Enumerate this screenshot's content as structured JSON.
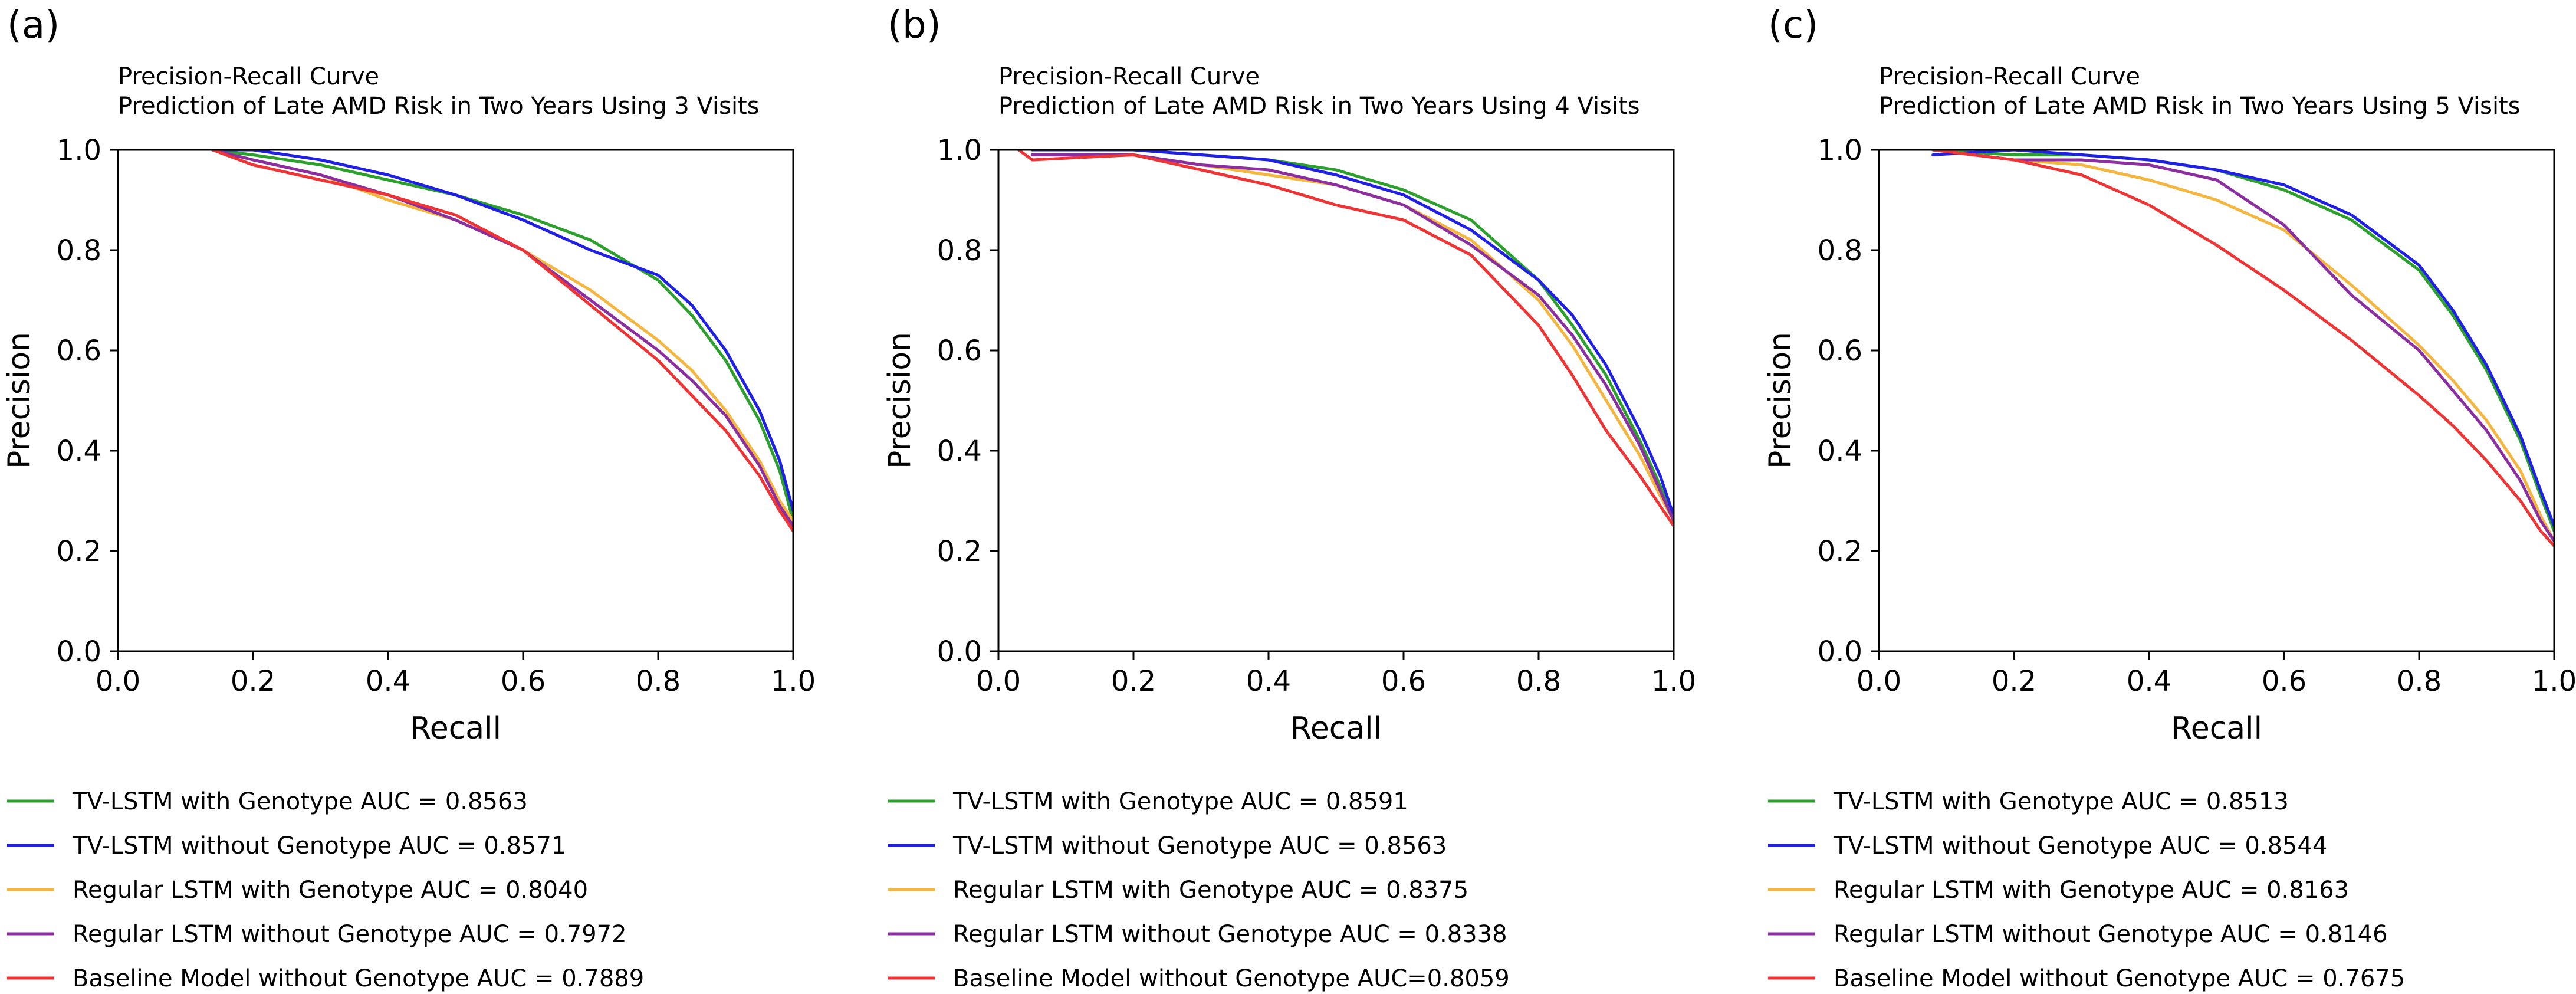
{
  "chart_data": [
    {
      "type": "line",
      "panel": "(a)",
      "title": "Precision-Recall Curve",
      "subtitle": "Prediction of Late AMD Risk in Two Years Using 3 Visits",
      "xlabel": "Recall",
      "ylabel": "Precision",
      "xlim": [
        0.0,
        1.0
      ],
      "ylim": [
        0.0,
        1.0
      ],
      "xticks": [
        "0.0",
        "0.2",
        "0.4",
        "0.6",
        "0.8",
        "1.0"
      ],
      "yticks": [
        "0.0",
        "0.2",
        "0.4",
        "0.6",
        "0.8",
        "1.0"
      ],
      "grid": false,
      "legend_position": "below",
      "series": [
        {
          "name": "TV-LSTM with Genotype AUC = 0.8563",
          "color": "#2ca02c",
          "x": [
            0.14,
            0.2,
            0.3,
            0.4,
            0.5,
            0.6,
            0.7,
            0.8,
            0.85,
            0.9,
            0.95,
            0.98,
            1.0
          ],
          "y": [
            1.0,
            0.99,
            0.97,
            0.94,
            0.91,
            0.87,
            0.82,
            0.74,
            0.67,
            0.58,
            0.46,
            0.36,
            0.26
          ]
        },
        {
          "name": "TV-LSTM without Genotype AUC = 0.8571",
          "color": "#1f1fe6",
          "x": [
            0.14,
            0.2,
            0.3,
            0.4,
            0.5,
            0.6,
            0.7,
            0.8,
            0.85,
            0.9,
            0.95,
            0.98,
            1.0
          ],
          "y": [
            1.0,
            1.0,
            0.98,
            0.95,
            0.91,
            0.86,
            0.8,
            0.75,
            0.69,
            0.6,
            0.48,
            0.38,
            0.28
          ]
        },
        {
          "name": "Regular LSTM with Genotype AUC = 0.8040",
          "color": "#f4b63f",
          "x": [
            0.14,
            0.2,
            0.3,
            0.4,
            0.5,
            0.6,
            0.7,
            0.8,
            0.85,
            0.9,
            0.95,
            0.98,
            1.0
          ],
          "y": [
            1.0,
            0.98,
            0.95,
            0.9,
            0.86,
            0.8,
            0.72,
            0.62,
            0.56,
            0.48,
            0.38,
            0.3,
            0.26
          ]
        },
        {
          "name": "Regular LSTM without Genotype AUC = 0.7972",
          "color": "#8b2fa0",
          "x": [
            0.14,
            0.2,
            0.3,
            0.4,
            0.5,
            0.6,
            0.7,
            0.8,
            0.85,
            0.9,
            0.95,
            0.98,
            1.0
          ],
          "y": [
            1.0,
            0.98,
            0.95,
            0.91,
            0.86,
            0.8,
            0.7,
            0.6,
            0.54,
            0.47,
            0.37,
            0.29,
            0.25
          ]
        },
        {
          "name": "Baseline Model without Genotype AUC = 0.7889",
          "color": "#ee3434",
          "x": [
            0.14,
            0.2,
            0.3,
            0.4,
            0.5,
            0.6,
            0.7,
            0.8,
            0.85,
            0.9,
            0.95,
            0.98,
            1.0
          ],
          "y": [
            1.0,
            0.97,
            0.94,
            0.91,
            0.87,
            0.8,
            0.69,
            0.58,
            0.51,
            0.44,
            0.35,
            0.28,
            0.24
          ]
        }
      ]
    },
    {
      "type": "line",
      "panel": "(b)",
      "title": "Precision-Recall Curve",
      "subtitle": "Prediction of Late AMD Risk in Two Years Using 4 Visits",
      "xlabel": "Recall",
      "ylabel": "Precision",
      "xlim": [
        0.0,
        1.0
      ],
      "ylim": [
        0.0,
        1.0
      ],
      "xticks": [
        "0.0",
        "0.2",
        "0.4",
        "0.6",
        "0.8",
        "1.0"
      ],
      "yticks": [
        "0.0",
        "0.2",
        "0.4",
        "0.6",
        "0.8",
        "1.0"
      ],
      "grid": false,
      "legend_position": "below",
      "series": [
        {
          "name": "TV-LSTM with Genotype AUC = 0.8591",
          "color": "#2ca02c",
          "x": [
            0.05,
            0.2,
            0.3,
            0.4,
            0.5,
            0.6,
            0.7,
            0.8,
            0.85,
            0.9,
            0.95,
            0.98,
            1.0
          ],
          "y": [
            1.0,
            1.0,
            0.99,
            0.98,
            0.96,
            0.92,
            0.86,
            0.74,
            0.65,
            0.55,
            0.42,
            0.33,
            0.26
          ]
        },
        {
          "name": "TV-LSTM without Genotype AUC = 0.8563",
          "color": "#1f1fe6",
          "x": [
            0.05,
            0.2,
            0.3,
            0.4,
            0.5,
            0.6,
            0.7,
            0.8,
            0.85,
            0.9,
            0.95,
            0.98,
            1.0
          ],
          "y": [
            1.0,
            1.0,
            0.99,
            0.98,
            0.95,
            0.91,
            0.84,
            0.74,
            0.67,
            0.57,
            0.44,
            0.35,
            0.27
          ]
        },
        {
          "name": "Regular LSTM with Genotype AUC = 0.8375",
          "color": "#f4b63f",
          "x": [
            0.05,
            0.2,
            0.3,
            0.4,
            0.5,
            0.6,
            0.7,
            0.8,
            0.85,
            0.9,
            0.95,
            0.98,
            1.0
          ],
          "y": [
            0.99,
            0.99,
            0.97,
            0.95,
            0.93,
            0.89,
            0.82,
            0.7,
            0.61,
            0.5,
            0.39,
            0.31,
            0.26
          ]
        },
        {
          "name": "Regular LSTM without Genotype AUC = 0.8338",
          "color": "#8b2fa0",
          "x": [
            0.05,
            0.2,
            0.3,
            0.4,
            0.5,
            0.6,
            0.7,
            0.8,
            0.85,
            0.9,
            0.95,
            0.98,
            1.0
          ],
          "y": [
            0.99,
            0.99,
            0.97,
            0.96,
            0.93,
            0.89,
            0.81,
            0.71,
            0.63,
            0.53,
            0.41,
            0.32,
            0.26
          ]
        },
        {
          "name": "Baseline Model without Genotype AUC=0.8059",
          "color": "#ee3434",
          "x": [
            0.03,
            0.05,
            0.2,
            0.3,
            0.4,
            0.5,
            0.6,
            0.7,
            0.8,
            0.85,
            0.9,
            0.95,
            0.98,
            1.0
          ],
          "y": [
            1.0,
            0.98,
            0.99,
            0.96,
            0.93,
            0.89,
            0.86,
            0.79,
            0.65,
            0.55,
            0.44,
            0.35,
            0.29,
            0.25
          ]
        }
      ]
    },
    {
      "type": "line",
      "panel": "(c)",
      "title": "Precision-Recall Curve",
      "subtitle": "Prediction of Late AMD Risk in Two Years Using 5 Visits",
      "xlabel": "Recall",
      "ylabel": "Precision",
      "xlim": [
        0.0,
        1.0
      ],
      "ylim": [
        0.0,
        1.0
      ],
      "xticks": [
        "0.0",
        "0.2",
        "0.4",
        "0.6",
        "0.8",
        "1.0"
      ],
      "yticks": [
        "0.0",
        "0.2",
        "0.4",
        "0.6",
        "0.8",
        "1.0"
      ],
      "grid": false,
      "legend_position": "below",
      "series": [
        {
          "name": "TV-LSTM with Genotype AUC = 0.8513",
          "color": "#2ca02c",
          "x": [
            0.08,
            0.2,
            0.3,
            0.4,
            0.5,
            0.6,
            0.7,
            0.8,
            0.85,
            0.9,
            0.95,
            0.98,
            1.0
          ],
          "y": [
            1.0,
            0.99,
            0.99,
            0.98,
            0.96,
            0.92,
            0.86,
            0.76,
            0.67,
            0.56,
            0.42,
            0.31,
            0.24
          ]
        },
        {
          "name": "TV-LSTM without Genotype AUC = 0.8544",
          "color": "#1f1fe6",
          "x": [
            0.08,
            0.2,
            0.3,
            0.4,
            0.5,
            0.6,
            0.7,
            0.8,
            0.85,
            0.9,
            0.95,
            0.98,
            1.0
          ],
          "y": [
            0.99,
            1.0,
            0.99,
            0.98,
            0.96,
            0.93,
            0.87,
            0.77,
            0.68,
            0.57,
            0.43,
            0.32,
            0.25
          ]
        },
        {
          "name": "Regular LSTM with Genotype AUC = 0.8163",
          "color": "#f4b63f",
          "x": [
            0.08,
            0.2,
            0.3,
            0.4,
            0.5,
            0.6,
            0.7,
            0.8,
            0.85,
            0.9,
            0.95,
            0.98,
            1.0
          ],
          "y": [
            1.0,
            0.98,
            0.97,
            0.94,
            0.9,
            0.84,
            0.73,
            0.61,
            0.54,
            0.46,
            0.36,
            0.27,
            0.22
          ]
        },
        {
          "name": "Regular LSTM without Genotype AUC = 0.8146",
          "color": "#8b2fa0",
          "x": [
            0.08,
            0.2,
            0.3,
            0.4,
            0.5,
            0.6,
            0.7,
            0.8,
            0.85,
            0.9,
            0.95,
            0.98,
            1.0
          ],
          "y": [
            1.0,
            0.98,
            0.98,
            0.97,
            0.94,
            0.85,
            0.71,
            0.6,
            0.52,
            0.44,
            0.34,
            0.26,
            0.22
          ]
        },
        {
          "name": "Baseline Model without Genotype AUC = 0.7675",
          "color": "#ee3434",
          "x": [
            0.08,
            0.2,
            0.3,
            0.4,
            0.5,
            0.6,
            0.7,
            0.8,
            0.85,
            0.9,
            0.95,
            0.98,
            1.0
          ],
          "y": [
            1.0,
            0.98,
            0.95,
            0.89,
            0.81,
            0.72,
            0.62,
            0.51,
            0.45,
            0.38,
            0.3,
            0.24,
            0.21
          ]
        }
      ]
    }
  ]
}
